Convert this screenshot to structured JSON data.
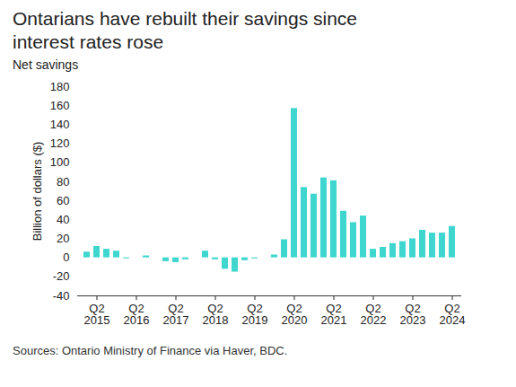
{
  "chart_data": {
    "type": "bar",
    "title": "Ontarians have rebuilt their savings since interest rates rose",
    "subtitle": "Net savings",
    "y_label": "Billion of dollars ($)",
    "source": "Sources: Ontario Ministry of Finance via Haver, BDC.",
    "categories": [
      null,
      "Q2\n2015",
      null,
      null,
      null,
      "Q2\n2016",
      null,
      null,
      null,
      "Q2\n2017",
      null,
      null,
      null,
      "Q2\n2018",
      null,
      null,
      null,
      "Q2\n2019",
      null,
      null,
      null,
      "Q2\n2020",
      null,
      null,
      null,
      "Q2\n2021",
      null,
      null,
      null,
      "Q2\n2022",
      null,
      null,
      null,
      "Q2\n2023",
      null,
      null,
      null,
      "Q2\n2024"
    ],
    "values": [
      6,
      12,
      9,
      7,
      -1,
      0,
      2,
      0,
      -4,
      -5,
      -2,
      0,
      7,
      -2,
      -12,
      -15,
      -3,
      -1,
      0,
      3,
      19,
      157,
      74,
      67,
      84,
      81,
      49,
      37,
      44,
      9,
      11,
      15,
      17,
      20,
      29,
      26,
      26,
      33
    ],
    "color": "#3fd6cf",
    "ylim": [
      -40,
      180
    ],
    "yticks": [
      -40,
      -20,
      0,
      20,
      40,
      60,
      80,
      100,
      120,
      140,
      160,
      180
    ],
    "grid": false
  }
}
